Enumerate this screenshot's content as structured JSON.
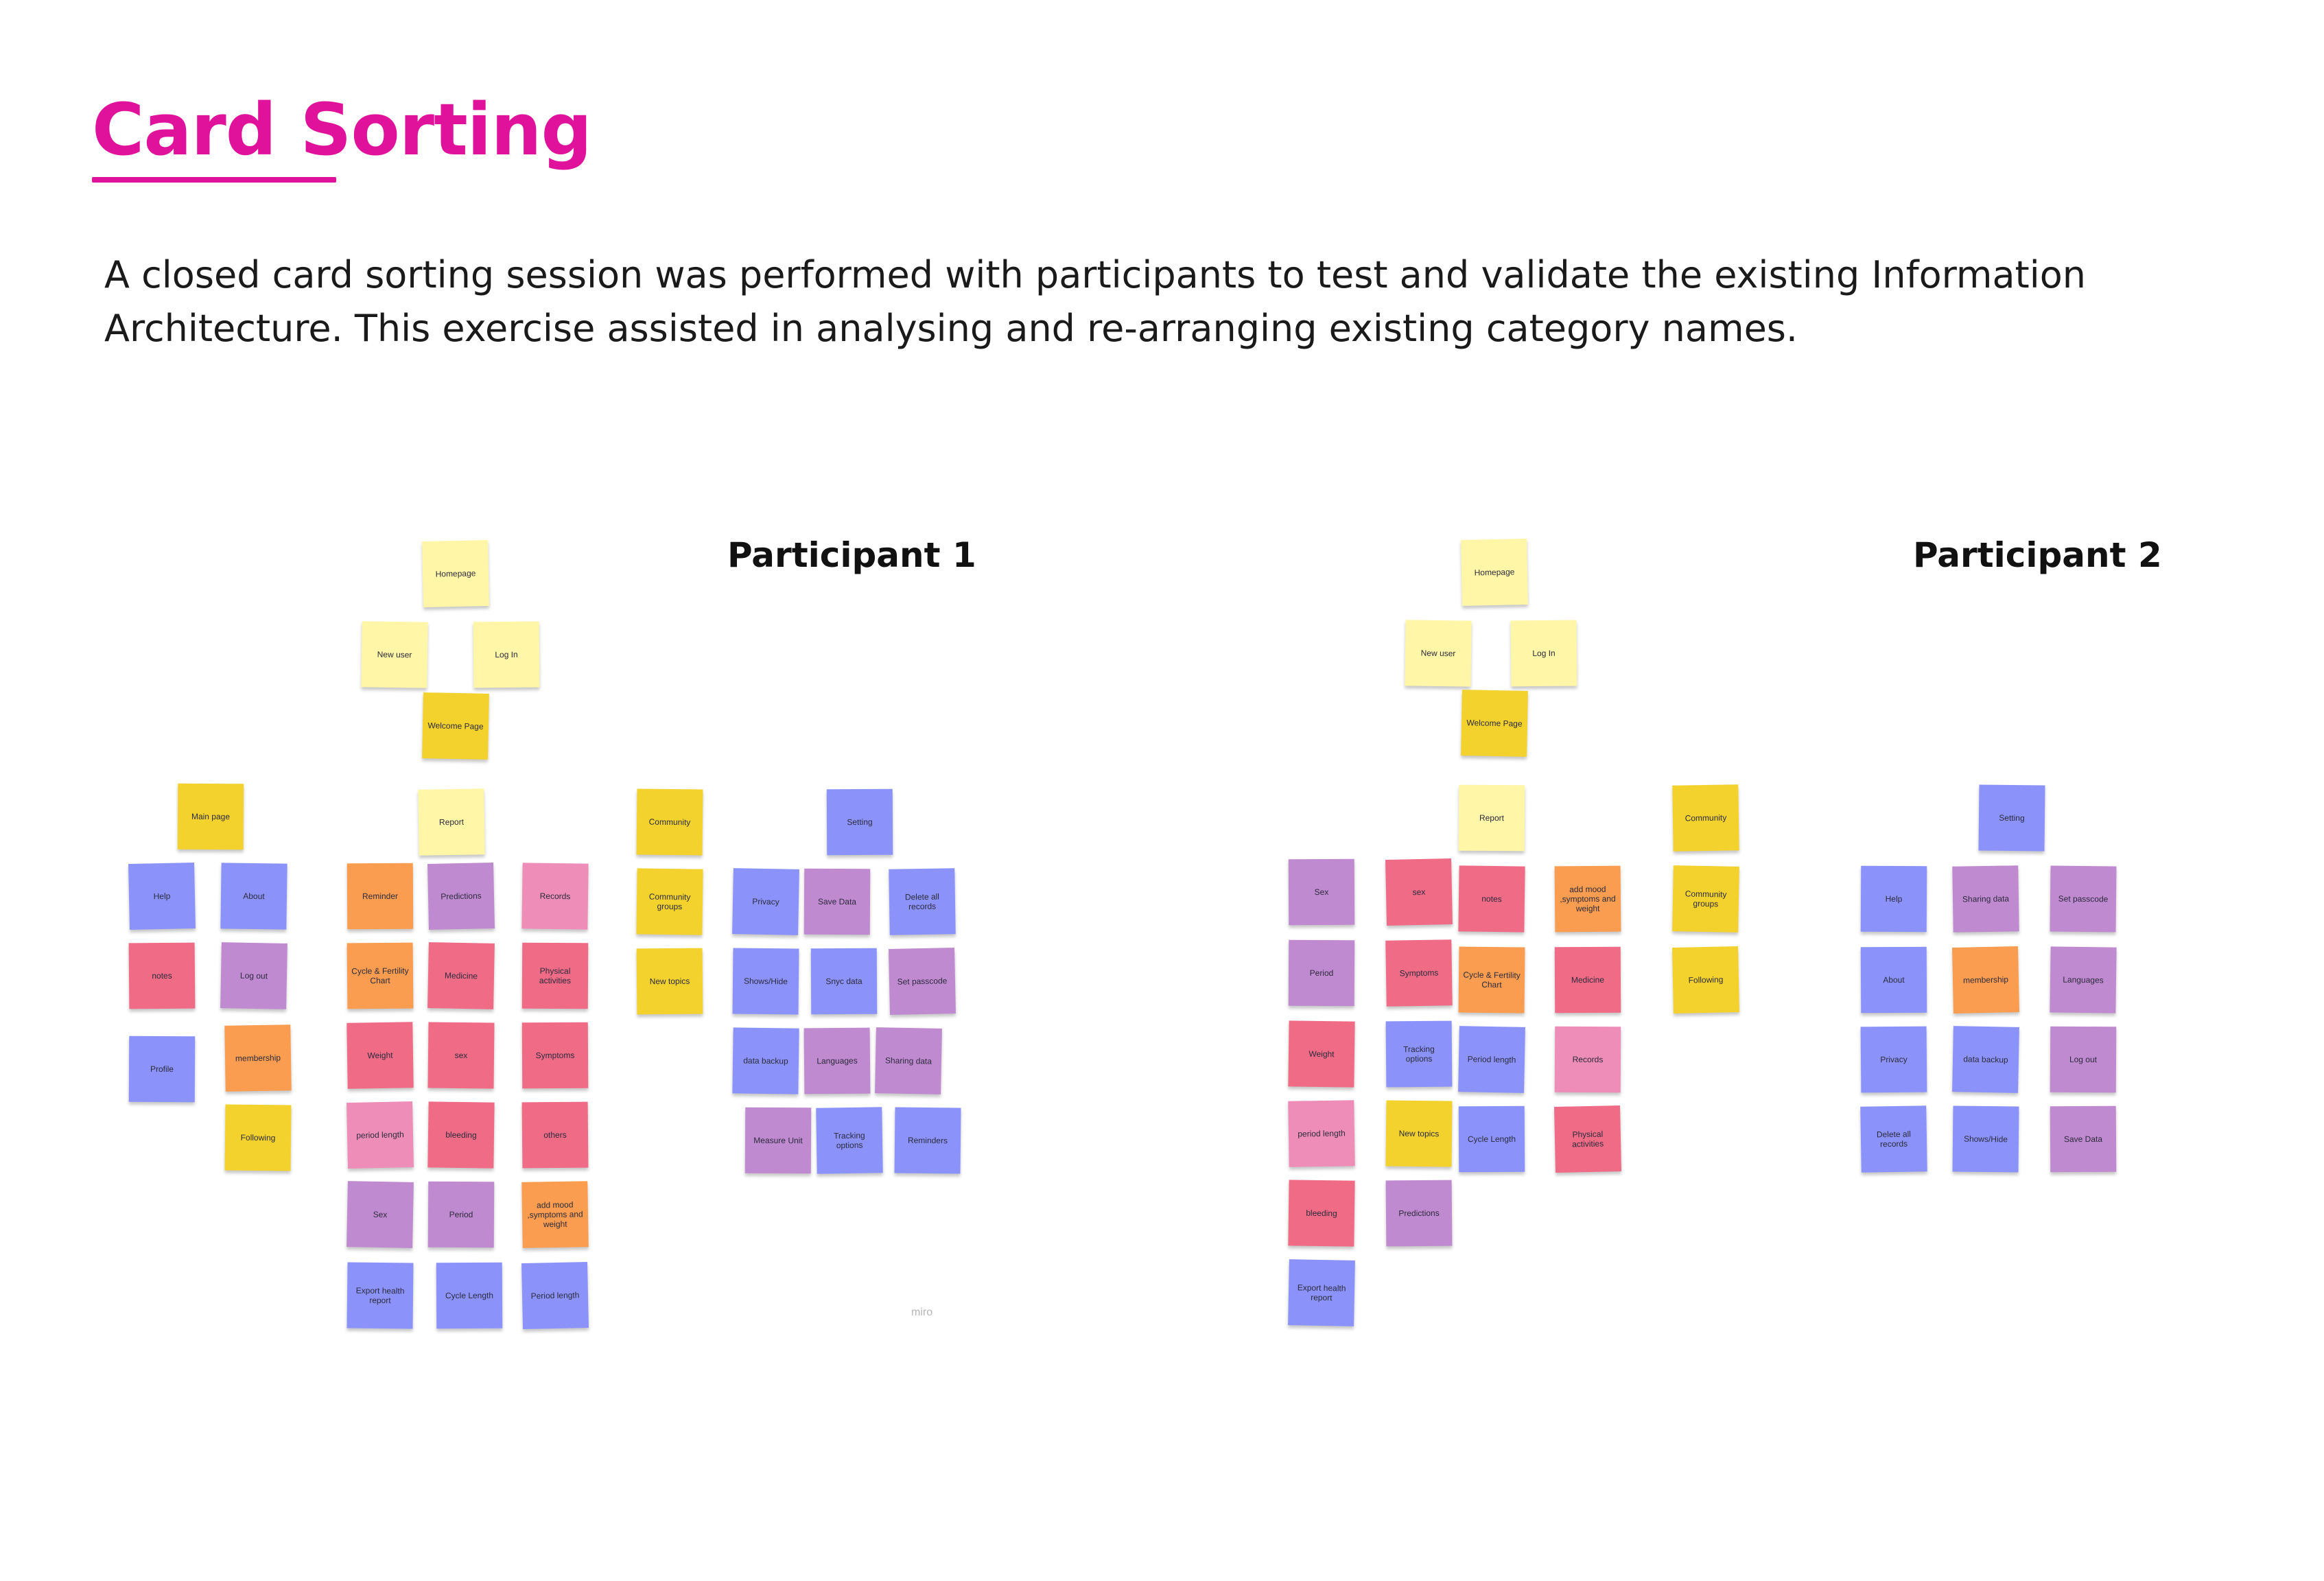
{
  "title": "Card Sorting",
  "description": "A closed card sorting session was performed with participants to test and validate the existing Information Architecture. This exercise assisted in analysing and re-arranging existing category names.",
  "colors": {
    "accent": "#e0119a",
    "pale_yellow": "#fff6a8",
    "yellow": "#f3d22e",
    "blue": "#8b93fb",
    "purple": "#c08ad1",
    "red": "#ef6b86",
    "pink": "#ee8db8",
    "orange": "#fb9d50"
  },
  "participants": [
    {
      "label": "Participant 1",
      "cards": [
        {
          "text": "Homepage",
          "color": "pale_yellow"
        },
        {
          "text": "New user",
          "color": "pale_yellow"
        },
        {
          "text": "Log In",
          "color": "pale_yellow"
        },
        {
          "text": "Welcome Page",
          "color": "yellow"
        },
        {
          "text": "Main page",
          "color": "yellow"
        },
        {
          "text": "Report",
          "color": "pale_yellow"
        },
        {
          "text": "Community",
          "color": "yellow"
        },
        {
          "text": "Setting",
          "color": "blue"
        },
        {
          "text": "Help",
          "color": "blue"
        },
        {
          "text": "About",
          "color": "blue"
        },
        {
          "text": "notes",
          "color": "red"
        },
        {
          "text": "Log out",
          "color": "purple"
        },
        {
          "text": "Profile",
          "color": "blue"
        },
        {
          "text": "membership",
          "color": "orange"
        },
        {
          "text": "Following",
          "color": "yellow"
        },
        {
          "text": "Reminder",
          "color": "orange"
        },
        {
          "text": "Predictions",
          "color": "purple"
        },
        {
          "text": "Records",
          "color": "pink"
        },
        {
          "text": "Cycle & Fertility Chart",
          "color": "orange"
        },
        {
          "text": "Medicine",
          "color": "red"
        },
        {
          "text": "Physical activities",
          "color": "red"
        },
        {
          "text": "Weight",
          "color": "red"
        },
        {
          "text": "sex",
          "color": "red"
        },
        {
          "text": "Symptoms",
          "color": "red"
        },
        {
          "text": "period length",
          "color": "pink"
        },
        {
          "text": "bleeding",
          "color": "red"
        },
        {
          "text": "others",
          "color": "red"
        },
        {
          "text": "Sex",
          "color": "purple"
        },
        {
          "text": "Period",
          "color": "purple"
        },
        {
          "text": "add mood ,symptoms and weight",
          "color": "orange"
        },
        {
          "text": "Export health report",
          "color": "blue"
        },
        {
          "text": "Cycle Length",
          "color": "blue"
        },
        {
          "text": "Period length",
          "color": "blue"
        },
        {
          "text": "Community groups",
          "color": "yellow"
        },
        {
          "text": "New topics",
          "color": "yellow"
        },
        {
          "text": "Privacy",
          "color": "blue"
        },
        {
          "text": "Save Data",
          "color": "purple"
        },
        {
          "text": "Delete all records",
          "color": "blue"
        },
        {
          "text": "Shows/Hide",
          "color": "blue"
        },
        {
          "text": "Snyc data",
          "color": "blue"
        },
        {
          "text": "Set passcode",
          "color": "purple"
        },
        {
          "text": "data backup",
          "color": "blue"
        },
        {
          "text": "Languages",
          "color": "purple"
        },
        {
          "text": "Sharing data",
          "color": "purple"
        },
        {
          "text": "Measure Unit",
          "color": "purple"
        },
        {
          "text": "Tracking options",
          "color": "blue"
        },
        {
          "text": "Reminders",
          "color": "blue"
        }
      ]
    },
    {
      "label": "Participant 2",
      "cards": [
        {
          "text": "Homepage",
          "color": "pale_yellow"
        },
        {
          "text": "New user",
          "color": "pale_yellow"
        },
        {
          "text": "Log In",
          "color": "pale_yellow"
        },
        {
          "text": "Welcome Page",
          "color": "yellow"
        },
        {
          "text": "Report",
          "color": "pale_yellow"
        },
        {
          "text": "Community",
          "color": "yellow"
        },
        {
          "text": "Setting",
          "color": "blue"
        },
        {
          "text": "Sex",
          "color": "purple"
        },
        {
          "text": "sex",
          "color": "red"
        },
        {
          "text": "notes",
          "color": "red"
        },
        {
          "text": "add mood ,symptoms and weight",
          "color": "orange"
        },
        {
          "text": "Community groups",
          "color": "yellow"
        },
        {
          "text": "Period",
          "color": "purple"
        },
        {
          "text": "Symptoms",
          "color": "red"
        },
        {
          "text": "Cycle & Fertility Chart",
          "color": "orange"
        },
        {
          "text": "Medicine",
          "color": "red"
        },
        {
          "text": "Following",
          "color": "yellow"
        },
        {
          "text": "Weight",
          "color": "red"
        },
        {
          "text": "Tracking options",
          "color": "blue"
        },
        {
          "text": "Period length",
          "color": "blue"
        },
        {
          "text": "Records",
          "color": "pink"
        },
        {
          "text": "period length",
          "color": "pink"
        },
        {
          "text": "New topics",
          "color": "yellow"
        },
        {
          "text": "Cycle Length",
          "color": "blue"
        },
        {
          "text": "Physical activities",
          "color": "red"
        },
        {
          "text": "bleeding",
          "color": "red"
        },
        {
          "text": "Predictions",
          "color": "purple"
        },
        {
          "text": "Export health report",
          "color": "blue"
        },
        {
          "text": "Help",
          "color": "blue"
        },
        {
          "text": "Sharing data",
          "color": "purple"
        },
        {
          "text": "Set passcode",
          "color": "purple"
        },
        {
          "text": "About",
          "color": "blue"
        },
        {
          "text": "membership",
          "color": "orange"
        },
        {
          "text": "Languages",
          "color": "purple"
        },
        {
          "text": "Privacy",
          "color": "blue"
        },
        {
          "text": "data backup",
          "color": "blue"
        },
        {
          "text": "Log out",
          "color": "purple"
        },
        {
          "text": "Delete all records",
          "color": "blue"
        },
        {
          "text": "Shows/Hide",
          "color": "blue"
        },
        {
          "text": "Save Data",
          "color": "purple"
        }
      ]
    }
  ],
  "watermark": "miro"
}
